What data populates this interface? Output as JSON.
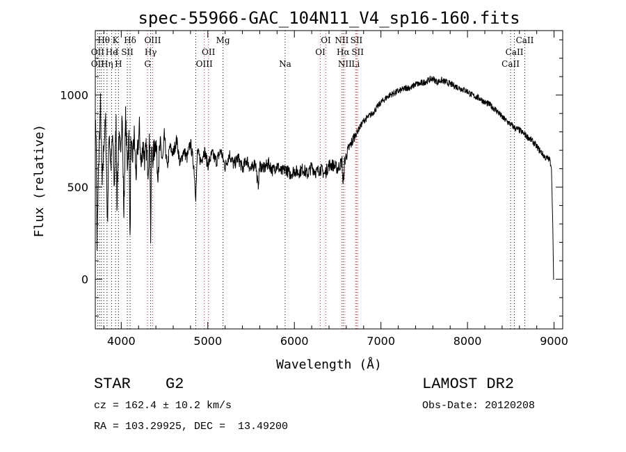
{
  "chart_data": {
    "type": "line",
    "title": "spec-55966-GAC_104N11_V4_sp16-160.fits",
    "xlabel": "Wavelength (Å)",
    "ylabel": "Flux (relative)",
    "xlim": [
      3700,
      9100
    ],
    "ylim": [
      -270,
      1350
    ],
    "xticks": [
      4000,
      5000,
      6000,
      7000,
      8000,
      9000
    ],
    "yticks": [
      0,
      500,
      1000
    ],
    "grid": false,
    "series": [
      {
        "color": "#000000",
        "x": [
          3700,
          3710,
          3720,
          3740,
          3760,
          3780,
          3800,
          3820,
          3840,
          3860,
          3880,
          3900,
          3920,
          3940,
          3950,
          3970,
          3990,
          4010,
          4030,
          4050,
          4070,
          4090,
          4102,
          4110,
          4130,
          4150,
          4170,
          4190,
          4210,
          4230,
          4250,
          4270,
          4290,
          4310,
          4330,
          4340,
          4350,
          4360,
          4380,
          4400,
          4420,
          4450,
          4480,
          4500,
          4530,
          4560,
          4600,
          4640,
          4680,
          4720,
          4760,
          4800,
          4840,
          4861,
          4880,
          4920,
          4960,
          5000,
          5050,
          5100,
          5150,
          5200,
          5250,
          5300,
          5350,
          5400,
          5450,
          5500,
          5550,
          5580,
          5600,
          5650,
          5700,
          5750,
          5800,
          5850,
          5900,
          5950,
          6000,
          6050,
          6100,
          6150,
          6200,
          6250,
          6300,
          6350,
          6400,
          6450,
          6500,
          6550,
          6563,
          6580,
          6620,
          6660,
          6700,
          6750,
          6800,
          6850,
          6900,
          6950,
          7000,
          7050,
          7100,
          7150,
          7200,
          7250,
          7300,
          7350,
          7400,
          7450,
          7500,
          7550,
          7600,
          7650,
          7700,
          7750,
          7800,
          7850,
          7900,
          7950,
          8000,
          8050,
          8100,
          8150,
          8200,
          8250,
          8300,
          8350,
          8400,
          8450,
          8500,
          8550,
          8600,
          8650,
          8700,
          8750,
          8800,
          8850,
          8900,
          8950,
          8970,
          8985,
          8995,
          9000
        ],
        "y": [
          800,
          820,
          180,
          650,
          950,
          500,
          750,
          850,
          300,
          820,
          600,
          780,
          500,
          850,
          420,
          760,
          700,
          900,
          350,
          880,
          620,
          780,
          180,
          720,
          650,
          780,
          560,
          700,
          820,
          600,
          740,
          650,
          710,
          600,
          780,
          230,
          720,
          650,
          700,
          760,
          580,
          720,
          640,
          770,
          600,
          720,
          680,
          760,
          620,
          700,
          660,
          740,
          610,
          450,
          690,
          640,
          700,
          620,
          680,
          640,
          700,
          610,
          680,
          620,
          660,
          600,
          650,
          590,
          640,
          500,
          620,
          600,
          630,
          590,
          620,
          580,
          600,
          570,
          590,
          580,
          600,
          570,
          610,
          580,
          600,
          570,
          620,
          620,
          600,
          640,
          500,
          640,
          700,
          740,
          780,
          820,
          860,
          880,
          900,
          930,
          960,
          980,
          1000,
          1010,
          1020,
          1030,
          1040,
          1040,
          1060,
          1060,
          1070,
          1080,
          1090,
          1070,
          1080,
          1070,
          1060,
          1050,
          1040,
          1030,
          1020,
          1000,
          990,
          980,
          960,
          950,
          930,
          910,
          880,
          860,
          840,
          820,
          810,
          790,
          770,
          750,
          720,
          690,
          660,
          650,
          600,
          300,
          0,
          0
        ]
      }
    ],
    "line_labels": [
      {
        "label": "Hθ",
        "x": 3798,
        "row": 1
      },
      {
        "label": "K",
        "x": 3934,
        "row": 1
      },
      {
        "label": "Hδ",
        "x": 4102,
        "row": 1
      },
      {
        "label": "OIII",
        "x": 4363,
        "row": 1
      },
      {
        "label": "Mg",
        "x": 5175,
        "row": 1
      },
      {
        "label": "OI",
        "x": 6364,
        "row": 1
      },
      {
        "label": "NII",
        "x": 6548,
        "row": 1
      },
      {
        "label": "SII",
        "x": 6717,
        "row": 1
      },
      {
        "label": "CaII",
        "x": 8662,
        "row": 1
      },
      {
        "label": "OII",
        "x": 3727,
        "row": 2
      },
      {
        "label": "He",
        "x": 3889,
        "row": 2
      },
      {
        "label": "I",
        "x": 3950,
        "row": 2
      },
      {
        "label": "SII",
        "x": 4070,
        "row": 2
      },
      {
        "label": "Hγ",
        "x": 4340,
        "row": 2
      },
      {
        "label": "OII",
        "x": 5007,
        "row": 2
      },
      {
        "label": "OI",
        "x": 6300,
        "row": 2
      },
      {
        "label": "Hα",
        "x": 6563,
        "row": 2
      },
      {
        "label": "SII",
        "x": 6731,
        "row": 2
      },
      {
        "label": "CaII",
        "x": 8542,
        "row": 2
      },
      {
        "label": "OII",
        "x": 3727,
        "row": 3
      },
      {
        "label": "Hη",
        "x": 3835,
        "row": 3
      },
      {
        "label": "H",
        "x": 3968,
        "row": 3
      },
      {
        "label": "G",
        "x": 4304,
        "row": 3
      },
      {
        "label": "OIII",
        "x": 4959,
        "row": 3
      },
      {
        "label": "Na",
        "x": 5893,
        "row": 3
      },
      {
        "label": "NII",
        "x": 6584,
        "row": 3
      },
      {
        "label": "Li",
        "x": 6708,
        "row": 3
      },
      {
        "label": "CaII",
        "x": 8498,
        "row": 3
      }
    ],
    "marker_lines_black": [
      3727,
      3750,
      3770,
      3798,
      3835,
      3889,
      3934,
      3968,
      4070,
      4102,
      4340,
      4861,
      5175,
      5893,
      6563,
      8498,
      8542,
      8662
    ],
    "marker_lines_red": [
      4304,
      4363,
      4959,
      5007,
      6300,
      6364,
      6548,
      6584,
      6708,
      6717,
      6731
    ]
  },
  "info": {
    "object_class": "STAR",
    "subclass": "G2",
    "survey": "LAMOST DR2",
    "cz": "cz = 162.4 ± 10.2 km/s",
    "obs_date": "Obs-Date: 20120208",
    "coords": "RA = 103.29925, DEC =  13.49200"
  }
}
